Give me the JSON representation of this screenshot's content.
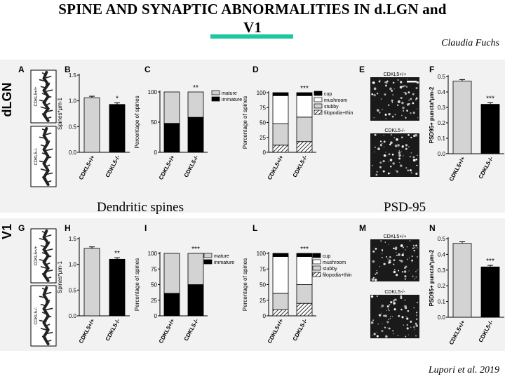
{
  "slide": {
    "title_line1": "SPINE AND SYNAPTIC ABNORMALITIES IN d.LGN and",
    "title_line2": "V1",
    "author": "Claudia Fuchs",
    "caption_left": "Dendritic spines",
    "caption_right": "PSD-95",
    "citation": "Lupori et al. 2019",
    "accent_color": "#1fc7a0"
  },
  "figure": {
    "row_labels": [
      "dLGN",
      "V1"
    ],
    "panel_letters": [
      "A",
      "B",
      "C",
      "D",
      "E",
      "F",
      "G",
      "H",
      "I",
      "L",
      "M",
      "N"
    ],
    "genotype_wt": "CDKL5+/+",
    "genotype_ko": "CDKL5-/-",
    "micro_wt": "CDKL5+/+",
    "micro_ko": "CDKL5-/-",
    "spine_density_label": "Spines*μm-1",
    "percentage_label": "Percentage of spines",
    "psd_label": "PSD95+ puncta*μm-2",
    "legend_maturity": [
      "mature",
      "immature"
    ],
    "legend_types": [
      "cup",
      "mushroom",
      "stubby",
      "filopodia+thin"
    ],
    "sig": {
      "B": "*",
      "C": "**",
      "D": "***",
      "F": "***",
      "H": "**",
      "I": "***",
      "L": "***",
      "N": "***"
    }
  },
  "chart_data": [
    {
      "panel": "B",
      "type": "bar",
      "categories": [
        "CDKL5+/+",
        "CDKL5-/-"
      ],
      "values": [
        1.06,
        0.93
      ],
      "ylim": [
        0,
        1.5
      ],
      "yticks": [
        0.0,
        0.5,
        1.0,
        1.5
      ],
      "ylabel": "Spines*μm-1"
    },
    {
      "panel": "C",
      "type": "bar",
      "stacked": true,
      "categories": [
        "CDKL5+/+",
        "CDKL5-/-"
      ],
      "series": [
        {
          "name": "immature",
          "values": [
            48,
            58
          ]
        },
        {
          "name": "mature",
          "values": [
            52,
            42
          ]
        }
      ],
      "ylim": [
        0,
        100
      ],
      "yticks": [
        0,
        50,
        100
      ],
      "ylabel": "Percentage of spines"
    },
    {
      "panel": "D",
      "type": "bar",
      "stacked": true,
      "categories": [
        "CDKL5+/+",
        "CDKL5-/-"
      ],
      "series": [
        {
          "name": "filopodia+thin",
          "values": [
            12,
            18
          ]
        },
        {
          "name": "stubby",
          "values": [
            36,
            41
          ]
        },
        {
          "name": "mushroom",
          "values": [
            47,
            36
          ]
        },
        {
          "name": "cup",
          "values": [
            5,
            5
          ]
        }
      ],
      "ylim": [
        0,
        100
      ],
      "yticks": [
        0,
        25,
        50,
        75,
        100
      ],
      "ylabel": "Percentage of spines"
    },
    {
      "panel": "F",
      "type": "bar",
      "categories": [
        "CDKL5+/+",
        "CDKL5-/-"
      ],
      "values": [
        0.47,
        0.32
      ],
      "ylim": [
        0,
        0.5
      ],
      "yticks": [
        0.0,
        0.1,
        0.2,
        0.3,
        0.4,
        0.5
      ],
      "ylabel": "PSD95+ puncta*μm-2"
    },
    {
      "panel": "H",
      "type": "bar",
      "categories": [
        "CDKL5+/+",
        "CDKL5-/-"
      ],
      "values": [
        1.31,
        1.1
      ],
      "ylim": [
        0,
        1.5
      ],
      "yticks": [
        0.0,
        0.5,
        1.0,
        1.5
      ],
      "ylabel": "Spines*μm-1"
    },
    {
      "panel": "I",
      "type": "bar",
      "stacked": true,
      "categories": [
        "CDKL5+/+",
        "CDKL5-/-"
      ],
      "series": [
        {
          "name": "immature",
          "values": [
            36,
            50
          ]
        },
        {
          "name": "mature",
          "values": [
            64,
            50
          ]
        }
      ],
      "ylim": [
        0,
        100
      ],
      "yticks": [
        0,
        25,
        50,
        75,
        100
      ],
      "ylabel": "Percentage of spines"
    },
    {
      "panel": "L",
      "type": "bar",
      "stacked": true,
      "categories": [
        "CDKL5+/+",
        "CDKL5-/-"
      ],
      "series": [
        {
          "name": "filopodia+thin",
          "values": [
            10,
            20
          ]
        },
        {
          "name": "stubby",
          "values": [
            26,
            30
          ]
        },
        {
          "name": "mushroom",
          "values": [
            59,
            45
          ]
        },
        {
          "name": "cup",
          "values": [
            5,
            5
          ]
        }
      ],
      "ylim": [
        0,
        100
      ],
      "yticks": [
        0,
        25,
        50,
        75,
        100
      ],
      "ylabel": "Percentage of spines"
    },
    {
      "panel": "N",
      "type": "bar",
      "categories": [
        "CDKL5+/+",
        "CDKL5-/-"
      ],
      "values": [
        0.47,
        0.32
      ],
      "ylim": [
        0,
        0.5
      ],
      "yticks": [
        0.0,
        0.1,
        0.2,
        0.3,
        0.4,
        0.5
      ],
      "ylabel": "PSD95+ puncta*μm-2"
    }
  ]
}
